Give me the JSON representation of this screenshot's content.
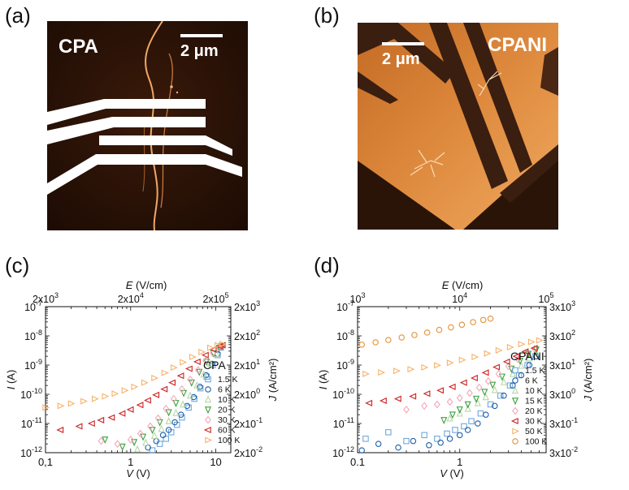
{
  "panels": {
    "a": {
      "label": "(a)",
      "title": "CPA",
      "scale": "2 μm"
    },
    "b": {
      "label": "(b)",
      "title": "CPANI",
      "scale": "2 μm"
    },
    "c": {
      "label": "(c)"
    },
    "d": {
      "label": "(d)"
    }
  },
  "chart_data": [
    {
      "type": "scatter",
      "panel": "c",
      "title": "",
      "xlabel": "V (V)",
      "ylabel": "I (A)",
      "x2label": "E (V/cm)",
      "y2label": "J (A/cm²)",
      "xscale": "log",
      "yscale": "log",
      "xlim": [
        0.1,
        15
      ],
      "ylim": [
        1e-12,
        1e-07
      ],
      "xticks": [
        {
          "v": 0.1,
          "t": "0,1"
        },
        {
          "v": 1,
          "t": "1"
        },
        {
          "v": 10,
          "t": "10"
        }
      ],
      "yticks": [
        {
          "v": 1e-12,
          "b": "10",
          "e": "-12"
        },
        {
          "v": 1e-11,
          "b": "10",
          "e": "-11"
        },
        {
          "v": 1e-10,
          "b": "10",
          "e": "-10"
        },
        {
          "v": 1e-09,
          "b": "10",
          "e": "-9"
        },
        {
          "v": 1e-08,
          "b": "10",
          "e": "-8"
        },
        {
          "v": 1e-07,
          "b": "10",
          "e": "-7"
        }
      ],
      "x2ticks": [
        {
          "v": 0.1,
          "b": "2x10",
          "e": "3"
        },
        {
          "v": 1,
          "b": "2x10",
          "e": "4"
        },
        {
          "v": 10,
          "b": "2x10",
          "e": "5"
        }
      ],
      "y2ticks": [
        {
          "v": 1e-12,
          "b": "2x10",
          "e": "-2"
        },
        {
          "v": 1e-11,
          "b": "2x10",
          "e": "-1"
        },
        {
          "v": 1e-10,
          "b": "2x10",
          "e": "0"
        },
        {
          "v": 1e-09,
          "b": "2x10",
          "e": "1"
        },
        {
          "v": 1e-08,
          "b": "2x10",
          "e": "2"
        },
        {
          "v": 1e-07,
          "b": "2x10",
          "e": "3"
        }
      ],
      "legend_title": "CPA",
      "legend_position": "right",
      "series": [
        {
          "name": "1.5 K",
          "marker": "square",
          "color": "#6fa8dc",
          "x": [
            1.8,
            2.2,
            2.6,
            3.0,
            3.5,
            4.0,
            4.8,
            5.6,
            6.6,
            7.8,
            9.2,
            10.5,
            11.5
          ],
          "y": [
            1.2e-12,
            2e-12,
            3e-12,
            5e-12,
            9e-12,
            1.6e-11,
            3.5e-11,
            7e-11,
            1.6e-10,
            4e-10,
            1e-09,
            2.2e-09,
            4e-09
          ]
        },
        {
          "name": "6 K",
          "marker": "circle",
          "color": "#1f5fa8",
          "x": [
            1.6,
            2.0,
            2.4,
            2.8,
            3.3,
            3.9,
            4.6,
            5.5,
            6.5,
            7.7,
            9.0,
            10.5,
            11.6
          ],
          "y": [
            1.5e-12,
            2.5e-12,
            4e-12,
            6e-12,
            1.1e-11,
            2e-11,
            4e-11,
            8e-11,
            1.8e-10,
            4.5e-10,
            1.1e-09,
            2.4e-09,
            4.2e-09
          ]
        },
        {
          "name": "10 K",
          "marker": "triangle-up",
          "color": "#b6d7a8",
          "x": [
            1.2,
            1.5,
            1.9,
            2.3,
            2.8,
            3.4,
            4.1,
            5.0,
            6.0,
            7.2,
            8.6,
            10.2,
            11.6
          ],
          "y": [
            1.3e-12,
            2.2e-12,
            3.8e-12,
            6.5e-12,
            1.2e-11,
            2.3e-11,
            4.5e-11,
            9e-11,
            2e-10,
            4.8e-10,
            1.1e-09,
            2.4e-09,
            4.3e-09
          ]
        },
        {
          "name": "20 K",
          "marker": "triangle-down",
          "color": "#38a13a",
          "x": [
            0.5,
            0.8,
            1.1,
            1.4,
            1.8,
            2.2,
            2.8,
            3.4,
            4.2,
            5.2,
            6.4,
            7.8,
            9.4,
            11.0,
            11.8
          ],
          "y": [
            2.8e-12,
            1.6e-12,
            2.3e-12,
            3.5e-12,
            6e-12,
            1.1e-11,
            2.4e-11,
            5e-11,
            1.1e-10,
            2.5e-10,
            5.8e-10,
            1.3e-09,
            2.5e-09,
            3.9e-09,
            4.5e-09
          ]
        },
        {
          "name": "30 K",
          "marker": "diamond",
          "color": "#f4a6b8",
          "x": [
            0.45,
            0.7,
            1.0,
            1.3,
            1.7,
            2.1,
            2.6,
            3.2,
            4.0,
            5.0,
            6.2,
            7.6,
            9.2,
            10.8,
            11.8
          ],
          "y": [
            2.5e-12,
            2e-12,
            2.8e-12,
            4.5e-12,
            8e-12,
            1.5e-11,
            3.2e-11,
            7e-11,
            1.5e-10,
            3.2e-10,
            6.8e-10,
            1.4e-09,
            2.6e-09,
            4e-09,
            4.6e-09
          ]
        },
        {
          "name": "60 K",
          "marker": "triangle-left",
          "color": "#cc2020",
          "x": [
            0.15,
            0.25,
            0.35,
            0.45,
            0.6,
            0.8,
            1.0,
            1.3,
            1.6,
            2.0,
            2.5,
            3.1,
            3.9,
            4.9,
            6.1,
            7.6,
            9.4,
            11.2,
            12.0
          ],
          "y": [
            6e-12,
            8e-12,
            1e-11,
            1.3e-11,
            1.6e-11,
            2.2e-11,
            3e-11,
            4.3e-11,
            6.2e-11,
            9.5e-11,
            1.5e-10,
            2.5e-10,
            4.3e-10,
            7.5e-10,
            1.3e-09,
            2.2e-09,
            3.4e-09,
            4.4e-09,
            4.8e-09
          ]
        },
        {
          "name": "100 K",
          "marker": "triangle-right",
          "color": "#f6b26b",
          "x": [
            0.1,
            0.15,
            0.2,
            0.28,
            0.38,
            0.5,
            0.65,
            0.85,
            1.1,
            1.45,
            1.9,
            2.5,
            3.2,
            4.1,
            5.3,
            6.8,
            8.6,
            10.5,
            12.0
          ],
          "y": [
            3.5e-11,
            4e-11,
            4.8e-11,
            5.8e-11,
            7e-11,
            8.5e-11,
            1.05e-10,
            1.35e-10,
            1.8e-10,
            2.5e-10,
            3.6e-10,
            5.4e-10,
            8.2e-10,
            1.25e-09,
            1.9e-09,
            2.8e-09,
            3.9e-09,
            4.8e-09,
            5.2e-09
          ]
        }
      ]
    },
    {
      "type": "scatter",
      "panel": "d",
      "title": "",
      "xlabel": "V (V)",
      "ylabel": "I (A)",
      "x2label": "E (V/cm)",
      "y2label": "J (A/cm²)",
      "xscale": "log",
      "yscale": "log",
      "xlim": [
        0.1,
        7
      ],
      "ylim": [
        1e-12,
        1e-07
      ],
      "xticks": [
        {
          "v": 0.1,
          "t": "0.1"
        },
        {
          "v": 1,
          "t": "1"
        }
      ],
      "yticks": [
        {
          "v": 1e-12,
          "b": "10",
          "e": "-12"
        },
        {
          "v": 1e-11,
          "b": "10",
          "e": "-11"
        },
        {
          "v": 1e-10,
          "b": "10",
          "e": "-10"
        },
        {
          "v": 1e-09,
          "b": "10",
          "e": "-9"
        },
        {
          "v": 1e-08,
          "b": "10",
          "e": "-8"
        },
        {
          "v": 1e-07,
          "b": "10",
          "e": "-7"
        }
      ],
      "x2ticks": [
        {
          "v": 0.1,
          "b": "10",
          "e": "3"
        },
        {
          "v": 1,
          "b": "10",
          "e": "4"
        },
        {
          "v": 10,
          "b": "10",
          "e": "5"
        }
      ],
      "y2ticks": [
        {
          "v": 1e-12,
          "b": "3x10",
          "e": "-2"
        },
        {
          "v": 1e-11,
          "b": "3x10",
          "e": "-1"
        },
        {
          "v": 1e-10,
          "b": "3x10",
          "e": "0"
        },
        {
          "v": 1e-09,
          "b": "3x10",
          "e": "1"
        },
        {
          "v": 1e-08,
          "b": "3x10",
          "e": "2"
        },
        {
          "v": 1e-07,
          "b": "3x10",
          "e": "3"
        }
      ],
      "legend_title": "CPANI",
      "legend_position": "right",
      "series": [
        {
          "name": "1.5 K",
          "marker": "square",
          "color": "#6fa8dc",
          "x": [
            0.12,
            0.2,
            0.3,
            0.45,
            0.6,
            0.75,
            0.9,
            1.1,
            1.3,
            1.6,
            2.0,
            2.5,
            3.1,
            3.8,
            4.6,
            5.5
          ],
          "y": [
            3e-12,
            5e-12,
            2.5e-12,
            4e-12,
            3e-12,
            4.5e-12,
            6e-12,
            8e-12,
            1.2e-11,
            2.2e-11,
            4.5e-11,
            9e-11,
            2e-10,
            4.5e-10,
            1e-09,
            2e-09
          ]
        },
        {
          "name": "6 K",
          "marker": "circle",
          "color": "#1f5fa8",
          "x": [
            0.11,
            0.16,
            0.25,
            0.35,
            0.5,
            0.65,
            0.8,
            1.0,
            1.2,
            1.5,
            1.8,
            2.2,
            2.7,
            3.3,
            4.0,
            4.8,
            5.6
          ],
          "y": [
            1.2e-12,
            2e-12,
            1.5e-12,
            2.5e-12,
            1.8e-12,
            2.2e-12,
            3e-12,
            4e-12,
            6e-12,
            1e-11,
            2e-11,
            4e-11,
            9e-11,
            2e-10,
            4.5e-10,
            1e-09,
            2e-09
          ]
        },
        {
          "name": "10 K",
          "marker": "triangle-up",
          "color": "#b6d7a8",
          "x": [
            0.8,
            1.0,
            1.2,
            1.5,
            1.8,
            2.2,
            2.7,
            3.3,
            4.0,
            4.8,
            5.6
          ],
          "y": [
            1.5e-11,
            2.2e-11,
            3.2e-11,
            5e-11,
            8e-11,
            1.4e-10,
            2.6e-10,
            5e-10,
            9.5e-10,
            1.7e-09,
            2.7e-09
          ]
        },
        {
          "name": "15 K",
          "marker": "triangle-down",
          "color": "#38a13a",
          "x": [
            0.7,
            0.85,
            1.0,
            1.2,
            1.45,
            1.75,
            2.1,
            2.6,
            3.2,
            3.9,
            4.7,
            5.6
          ],
          "y": [
            1.3e-11,
            2e-11,
            3e-11,
            4.5e-11,
            7e-11,
            1.2e-10,
            2.1e-10,
            4e-10,
            7.5e-10,
            1.4e-09,
            2.4e-09,
            3.4e-09
          ]
        },
        {
          "name": "20 K",
          "marker": "diamond",
          "color": "#f4a6b8",
          "x": [
            0.3,
            0.45,
            0.6,
            0.8,
            1.0,
            1.25,
            1.55,
            1.9,
            2.4,
            3.0,
            3.7,
            4.5,
            5.4
          ],
          "y": [
            3e-11,
            4e-11,
            4.5e-11,
            5.5e-11,
            7.5e-11,
            1.1e-10,
            1.7e-10,
            2.8e-10,
            5e-10,
            9e-10,
            1.6e-09,
            2.6e-09,
            3.6e-09
          ]
        },
        {
          "name": "30 K",
          "marker": "triangle-left",
          "color": "#cc2020",
          "x": [
            0.13,
            0.18,
            0.25,
            0.35,
            0.48,
            0.65,
            0.85,
            1.1,
            1.4,
            1.8,
            2.3,
            2.9,
            3.6,
            4.4,
            5.4
          ],
          "y": [
            5e-11,
            6e-11,
            7e-11,
            8.5e-11,
            1.05e-10,
            1.35e-10,
            1.8e-10,
            2.5e-10,
            3.6e-10,
            5.5e-10,
            8.5e-10,
            1.3e-09,
            2e-09,
            2.9e-09,
            3.8e-09
          ]
        },
        {
          "name": "50 K",
          "marker": "triangle-right",
          "color": "#f6b26b",
          "x": [
            0.12,
            0.17,
            0.24,
            0.33,
            0.45,
            0.6,
            0.8,
            1.05,
            1.4,
            1.85,
            2.4,
            3.1,
            4.0,
            5.0,
            6.0
          ],
          "y": [
            5e-10,
            5.6e-10,
            6.3e-10,
            7.2e-10,
            8.3e-10,
            9.8e-10,
            1.2e-09,
            1.5e-09,
            1.9e-09,
            2.5e-09,
            3.2e-09,
            4.1e-09,
            5.2e-09,
            6.2e-09,
            7e-09
          ]
        },
        {
          "name": "100 K",
          "marker": "circle",
          "color": "#e69138",
          "x": [
            0.11,
            0.15,
            0.2,
            0.27,
            0.36,
            0.48,
            0.63,
            0.82,
            1.05,
            1.35,
            1.7,
            2.0
          ],
          "y": [
            5e-09,
            6e-09,
            7.2e-09,
            8.8e-09,
            1.07e-08,
            1.3e-08,
            1.6e-08,
            1.95e-08,
            2.4e-08,
            2.95e-08,
            3.5e-08,
            3.9e-08
          ]
        }
      ]
    }
  ]
}
